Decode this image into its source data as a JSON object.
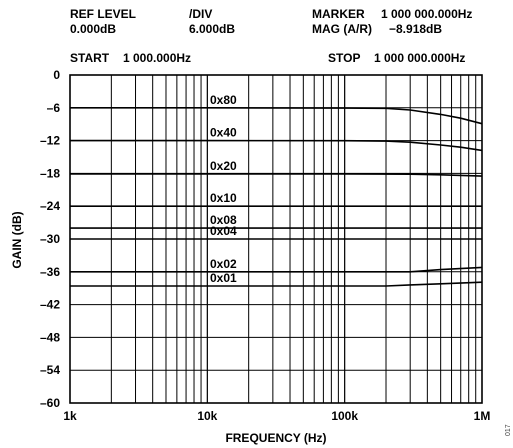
{
  "header": {
    "ref_level_label": "REF LEVEL",
    "ref_level_value": "0.000dB",
    "div_label": "/DIV",
    "div_value": "6.000dB",
    "marker_label": "MARKER",
    "marker_value": "1 000 000.000Hz",
    "mag_label": "MAG (A/R)",
    "mag_value": "−8.918dB",
    "start_label": "START",
    "start_value": "1 000.000Hz",
    "stop_label": "STOP",
    "stop_value": "1 000 000.000Hz"
  },
  "figure_id": "017",
  "chart_data": {
    "type": "line",
    "xlabel": "FREQUENCY (Hz)",
    "ylabel": "GAIN (dB)",
    "xscale": "log",
    "xlim": [
      1000,
      1000000
    ],
    "ylim": [
      -60,
      0
    ],
    "grid": true,
    "x_ticks": [
      1000,
      10000,
      100000,
      1000000
    ],
    "x_tick_labels": [
      "1k",
      "10k",
      "100k",
      "1M"
    ],
    "y_ticks": [
      0,
      -6,
      -12,
      -18,
      -24,
      -30,
      -36,
      -42,
      -48,
      -54,
      -60
    ],
    "y_tick_labels": [
      "0",
      "–6",
      "–12",
      "–18",
      "–24",
      "–30",
      "–36",
      "–42",
      "–48",
      "–54",
      "–60"
    ],
    "line_color": "#000000",
    "series": [
      {
        "name": "0x80",
        "x": [
          1000,
          10000,
          100000,
          200000,
          300000,
          500000,
          700000,
          1000000
        ],
        "y": [
          -6.0,
          -6.0,
          -6.05,
          -6.1,
          -6.4,
          -7.2,
          -7.9,
          -8.9
        ]
      },
      {
        "name": "0x40",
        "x": [
          1000,
          10000,
          100000,
          200000,
          300000,
          500000,
          700000,
          1000000
        ],
        "y": [
          -12.0,
          -12.0,
          -12.02,
          -12.1,
          -12.3,
          -12.8,
          -13.2,
          -13.8
        ]
      },
      {
        "name": "0x20",
        "x": [
          1000,
          10000,
          100000,
          300000,
          500000,
          1000000
        ],
        "y": [
          -18.1,
          -18.1,
          -18.1,
          -18.15,
          -18.25,
          -18.5
        ]
      },
      {
        "name": "0x10",
        "x": [
          1000,
          10000,
          100000,
          1000000
        ],
        "y": [
          -24.0,
          -24.0,
          -24.0,
          -24.0
        ]
      },
      {
        "name": "0x08",
        "x": [
          1000,
          10000,
          100000,
          1000000
        ],
        "y": [
          -28.0,
          -28.0,
          -28.0,
          -28.0
        ]
      },
      {
        "name": "0x04",
        "x": [
          1000,
          10000,
          100000,
          1000000
        ],
        "y": [
          -30.0,
          -30.0,
          -30.0,
          -30.0
        ]
      },
      {
        "name": "0x02",
        "x": [
          1000,
          10000,
          100000,
          300000,
          500000,
          1000000
        ],
        "y": [
          -36.0,
          -36.0,
          -36.0,
          -36.0,
          -35.6,
          -35.2
        ]
      },
      {
        "name": "0x01",
        "x": [
          1000,
          10000,
          100000,
          200000,
          300000,
          500000,
          1000000
        ],
        "y": [
          -38.6,
          -38.6,
          -38.6,
          -38.6,
          -38.4,
          -38.2,
          -37.9
        ]
      }
    ]
  }
}
